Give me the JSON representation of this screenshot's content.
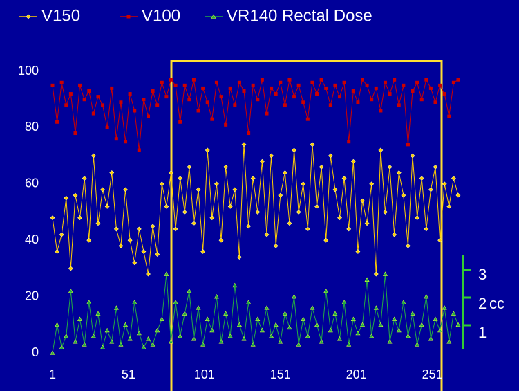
{
  "chart_data": {
    "type": "line",
    "x": [
      1,
      4,
      7,
      10,
      13,
      16,
      19,
      22,
      25,
      28,
      31,
      34,
      37,
      40,
      43,
      46,
      49,
      52,
      55,
      58,
      61,
      64,
      67,
      70,
      73,
      76,
      79,
      82,
      85,
      88,
      91,
      94,
      97,
      100,
      103,
      106,
      109,
      112,
      115,
      118,
      121,
      124,
      127,
      130,
      133,
      136,
      139,
      142,
      145,
      148,
      151,
      154,
      157,
      160,
      163,
      166,
      169,
      172,
      175,
      178,
      181,
      184,
      187,
      190,
      193,
      196,
      199,
      202,
      205,
      208,
      211,
      214,
      217,
      220,
      223,
      226,
      229,
      232,
      235,
      238,
      241,
      244,
      247,
      250,
      253,
      256,
      259,
      262,
      265,
      268
    ],
    "series": [
      {
        "name": "V150",
        "color": "#ffcc00",
        "marker": "diamond",
        "values": [
          48,
          36,
          42,
          55,
          30,
          56,
          48,
          62,
          40,
          70,
          46,
          58,
          52,
          64,
          44,
          38,
          58,
          40,
          32,
          44,
          36,
          28,
          45,
          35,
          60,
          52,
          64,
          44,
          62,
          50,
          66,
          46,
          58,
          36,
          72,
          48,
          60,
          40,
          66,
          52,
          58,
          34,
          74,
          45,
          62,
          50,
          68,
          42,
          70,
          38,
          56,
          64,
          46,
          72,
          50,
          60,
          44,
          74,
          52,
          66,
          40,
          70,
          58,
          48,
          62,
          44,
          68,
          36,
          54,
          46,
          60,
          28,
          72,
          50,
          66,
          42,
          64,
          56,
          38,
          70,
          48,
          62,
          44,
          58,
          66,
          40,
          60,
          52,
          62,
          56
        ]
      },
      {
        "name": "V100",
        "color": "#cc0000",
        "marker": "square",
        "values": [
          95,
          82,
          96,
          88,
          92,
          78,
          95,
          90,
          93,
          85,
          91,
          88,
          80,
          94,
          76,
          89,
          75,
          92,
          86,
          72,
          90,
          84,
          93,
          88,
          96,
          91,
          97,
          95,
          82,
          95,
          90,
          97,
          86,
          94,
          89,
          83,
          96,
          91,
          81,
          94,
          88,
          96,
          93,
          78,
          95,
          90,
          97,
          85,
          94,
          92,
          96,
          88,
          97,
          91,
          95,
          89,
          83,
          96,
          92,
          97,
          94,
          88,
          95,
          91,
          96,
          75,
          93,
          89,
          97,
          95,
          90,
          94,
          86,
          96,
          92,
          97,
          88,
          95,
          74,
          93,
          96,
          90,
          97,
          94,
          89,
          95,
          92,
          84,
          96,
          97
        ]
      },
      {
        "name": "VR140 Rectal Dose",
        "color": "#22aa44",
        "marker": "triangle",
        "values": [
          0,
          10,
          2,
          6,
          22,
          4,
          12,
          3,
          18,
          6,
          14,
          2,
          8,
          4,
          16,
          3,
          10,
          5,
          18,
          7,
          2,
          5,
          3,
          8,
          12,
          28,
          4,
          18,
          6,
          14,
          22,
          5,
          16,
          3,
          12,
          8,
          20,
          4,
          14,
          6,
          24,
          10,
          5,
          18,
          3,
          12,
          8,
          16,
          6,
          10,
          4,
          14,
          9,
          20,
          3,
          12,
          6,
          16,
          10,
          4,
          22,
          8,
          14,
          5,
          18,
          3,
          12,
          7,
          10,
          26,
          6,
          16,
          10,
          28,
          4,
          12,
          8,
          18,
          6,
          14,
          3,
          10,
          20,
          5,
          12,
          8,
          16,
          4,
          14,
          10
        ]
      }
    ],
    "xlim": [
      1,
      268
    ],
    "xticks": [
      1,
      51,
      101,
      151,
      201,
      251
    ],
    "ylim": [
      0,
      100
    ],
    "yticks": [
      0,
      20,
      40,
      60,
      80,
      100
    ],
    "annotations": [
      "1",
      "2",
      "3",
      "cc"
    ]
  }
}
